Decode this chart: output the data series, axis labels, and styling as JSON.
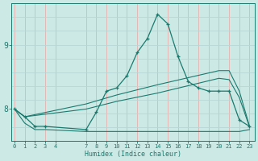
{
  "xlabel": "Humidex (Indice chaleur)",
  "bg_color": "#cce9e5",
  "line_color": "#1a7a6e",
  "grid_color_v": "#e8b0b0",
  "grid_color_h": "#b8d8d5",
  "x_ticks": [
    0,
    1,
    2,
    3,
    4,
    7,
    8,
    9,
    10,
    11,
    12,
    13,
    14,
    15,
    16,
    17,
    18,
    19,
    20,
    21,
    22,
    23
  ],
  "y_ticks": [
    8,
    9
  ],
  "xlim": [
    -0.3,
    23.5
  ],
  "ylim": [
    7.5,
    9.65
  ],
  "line_main": {
    "x": [
      0,
      1,
      2,
      3,
      7,
      8,
      9,
      10,
      11,
      12,
      13,
      14,
      15,
      16,
      17,
      18,
      19,
      20,
      21,
      22,
      23
    ],
    "y": [
      8.0,
      7.88,
      7.73,
      7.73,
      7.68,
      7.95,
      8.28,
      8.33,
      8.52,
      8.88,
      9.1,
      9.48,
      9.33,
      8.82,
      8.43,
      8.33,
      8.28,
      8.28,
      8.28,
      7.83,
      7.73
    ]
  },
  "line2": {
    "x": [
      0,
      1,
      7,
      10,
      14,
      20,
      21,
      22,
      23
    ],
    "y": [
      8.0,
      7.88,
      8.08,
      8.22,
      8.38,
      8.6,
      8.6,
      8.28,
      7.73
    ]
  },
  "line3": {
    "x": [
      0,
      1,
      7,
      10,
      14,
      20,
      21,
      22,
      23
    ],
    "y": [
      8.0,
      7.88,
      8.0,
      8.12,
      8.25,
      8.48,
      8.46,
      8.18,
      7.72
    ]
  },
  "line4": {
    "x": [
      0,
      1,
      2,
      3,
      7,
      10,
      14,
      20,
      21,
      22,
      23
    ],
    "y": [
      8.0,
      7.78,
      7.68,
      7.68,
      7.65,
      7.65,
      7.65,
      7.65,
      7.65,
      7.65,
      7.68
    ]
  }
}
